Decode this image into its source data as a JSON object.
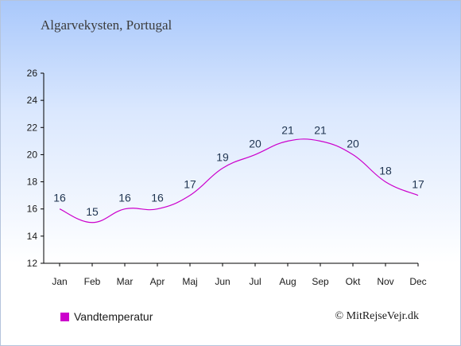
{
  "chart_data": {
    "type": "line",
    "title": "Algarvekysten, Portugal",
    "categories": [
      "Jan",
      "Feb",
      "Mar",
      "Apr",
      "Maj",
      "Jun",
      "Jul",
      "Aug",
      "Sep",
      "Okt",
      "Nov",
      "Dec"
    ],
    "series": [
      {
        "name": "Vandtemperatur",
        "values": [
          16,
          15,
          16,
          16,
          17,
          19,
          20,
          21,
          21,
          20,
          18,
          17
        ],
        "color": "#cc00cc"
      }
    ],
    "ylim": [
      12,
      26
    ],
    "yticks": [
      12,
      14,
      16,
      18,
      20,
      22,
      24,
      26
    ],
    "xlabel": "",
    "ylabel": "",
    "grid": false,
    "legend": "bottom-left"
  },
  "copyright": "© MitRejseVejr.dk"
}
